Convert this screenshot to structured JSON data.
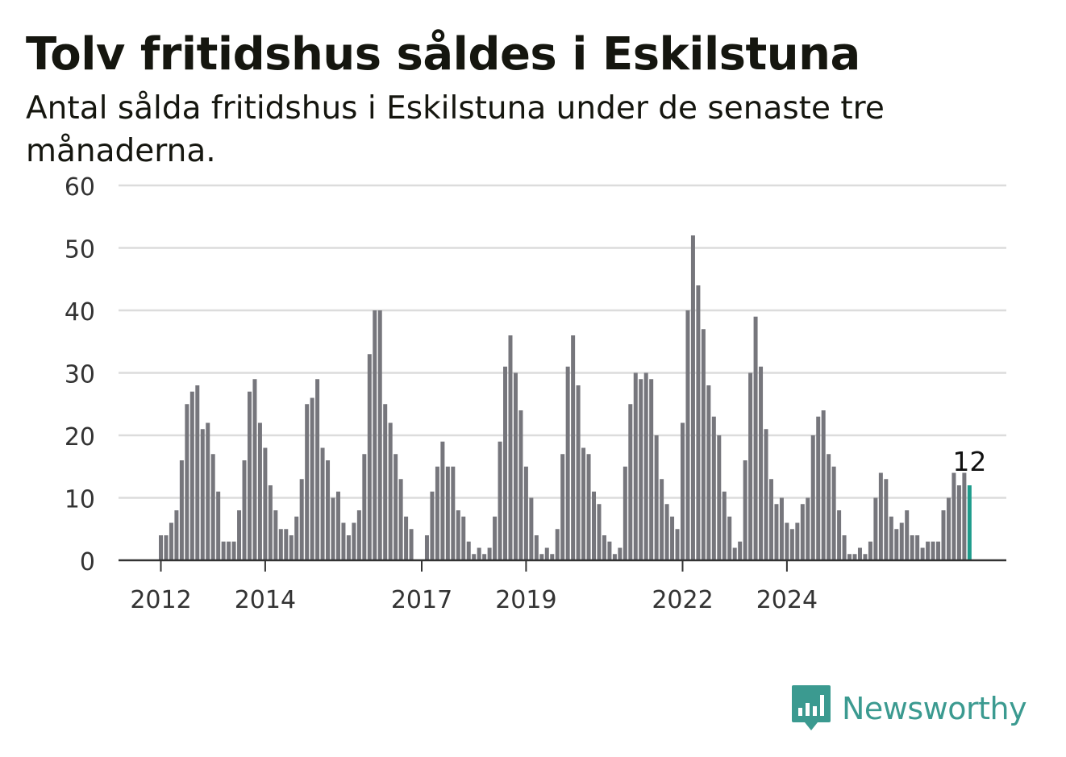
{
  "title": "Tolv fritidshus såldes i Eskilstuna",
  "subtitle": "Antal sålda fritidshus i Eskilstuna under de senaste tre månaderna.",
  "brand": {
    "name": "Newsworthy",
    "icon": "newsworthy-bar-chart-icon"
  },
  "colors": {
    "bar": "#76767c",
    "highlight": "#1e9c8c",
    "grid": "#dcdcdc",
    "axis": "#333333",
    "brand": "#3b9a90"
  },
  "chart_data": {
    "type": "bar",
    "title": "Tolv fritidshus såldes i Eskilstuna",
    "subtitle": "Antal sålda fritidshus i Eskilstuna under de senaste tre månaderna.",
    "xlabel": "",
    "ylabel": "",
    "ylim": [
      0,
      60
    ],
    "yticks": [
      0,
      10,
      20,
      30,
      40,
      50,
      60
    ],
    "grid": true,
    "xtick_labels": [
      {
        "label": "2012",
        "index": 0
      },
      {
        "label": "2014",
        "index": 20
      },
      {
        "label": "2017",
        "index": 50
      },
      {
        "label": "2019",
        "index": 70
      },
      {
        "label": "2022",
        "index": 100
      },
      {
        "label": "2024",
        "index": 120
      }
    ],
    "values": [
      4,
      4,
      6,
      8,
      16,
      25,
      27,
      28,
      21,
      22,
      17,
      11,
      3,
      3,
      3,
      8,
      16,
      27,
      29,
      22,
      18,
      12,
      8,
      5,
      5,
      4,
      7,
      13,
      25,
      26,
      29,
      18,
      16,
      10,
      11,
      6,
      4,
      6,
      8,
      17,
      33,
      40,
      40,
      25,
      22,
      17,
      13,
      7,
      5,
      0,
      0,
      4,
      11,
      15,
      19,
      15,
      15,
      8,
      7,
      3,
      1,
      2,
      1,
      2,
      7,
      19,
      31,
      36,
      30,
      24,
      15,
      10,
      4,
      1,
      2,
      1,
      5,
      17,
      31,
      36,
      28,
      18,
      17,
      11,
      9,
      4,
      3,
      1,
      2,
      15,
      25,
      30,
      29,
      30,
      29,
      20,
      13,
      9,
      7,
      5,
      22,
      40,
      52,
      44,
      37,
      28,
      23,
      20,
      11,
      7,
      2,
      3,
      16,
      30,
      39,
      31,
      21,
      13,
      9,
      10,
      6,
      5,
      6,
      9,
      10,
      20,
      23,
      24,
      17,
      15,
      8,
      4,
      1,
      1,
      2,
      1,
      3,
      10,
      14,
      13,
      7,
      5,
      6,
      8,
      4,
      4,
      2,
      3,
      3,
      3,
      8,
      10,
      14,
      12,
      14,
      12
    ],
    "highlight_index": 155,
    "annotation": {
      "label": "12",
      "index": 155
    }
  }
}
